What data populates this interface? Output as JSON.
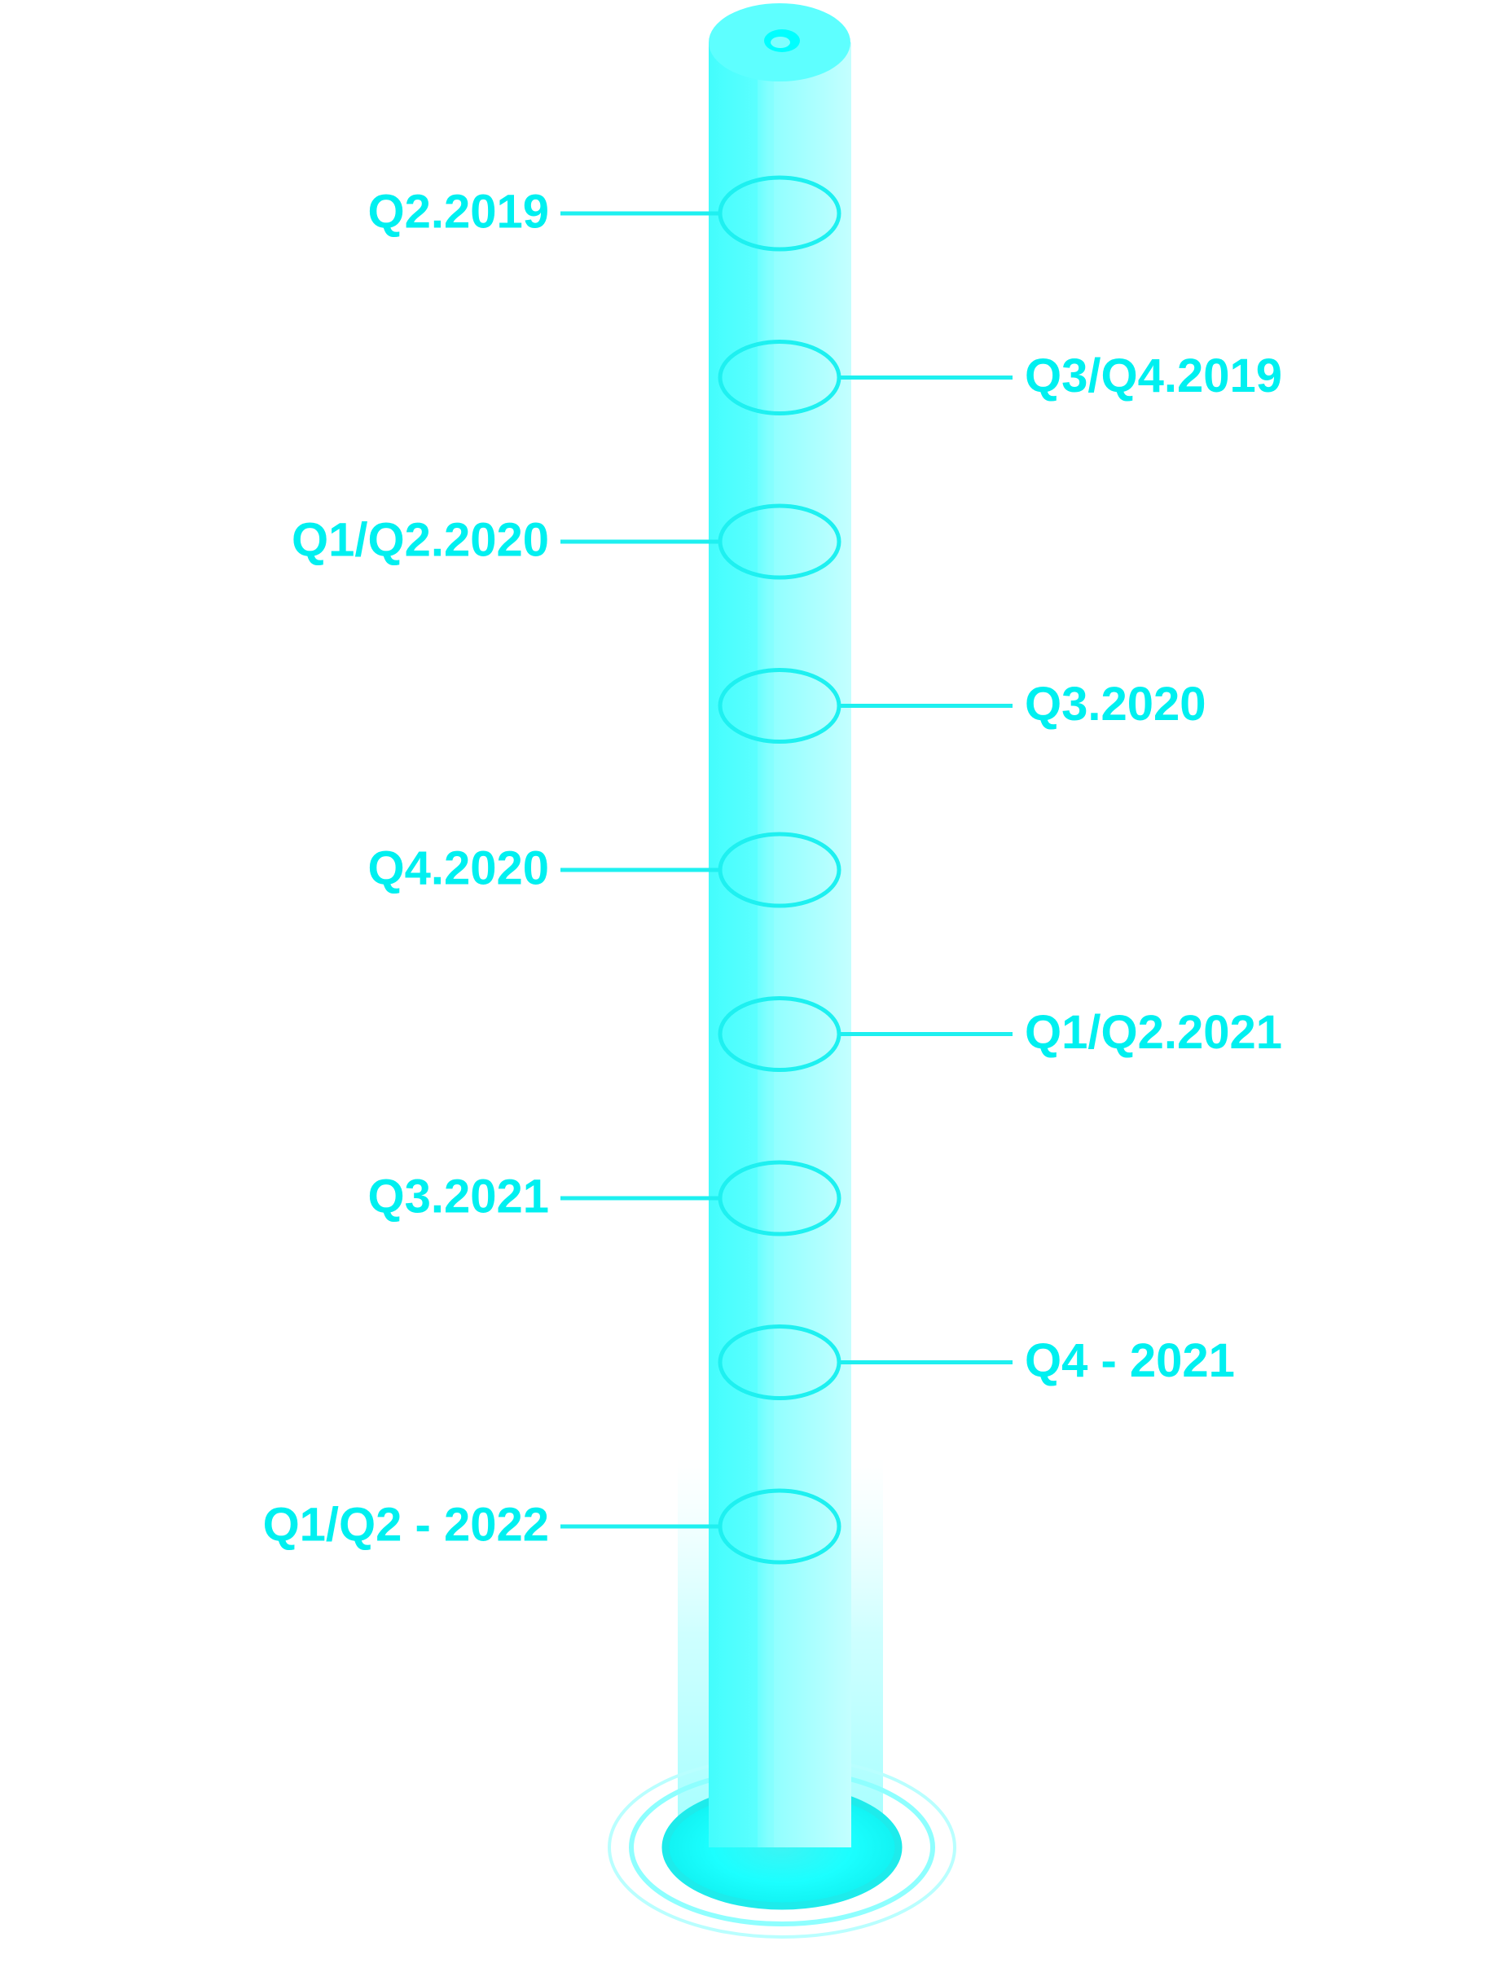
{
  "colors": {
    "accent": "#00FFFF",
    "tube_light": "#B8FFFF",
    "tube_mid": "#7AFFFF",
    "tube_core": "#4DFFFF",
    "ring": "#1EF0F0",
    "label": "#00F0F0",
    "background": "#FFFFFF"
  },
  "milestones": [
    {
      "label": "Q2.2019",
      "side": "left"
    },
    {
      "label": "Q3/Q4.2019",
      "side": "right"
    },
    {
      "label": "Q1/Q2.2020",
      "side": "left"
    },
    {
      "label": "Q3.2020",
      "side": "right"
    },
    {
      "label": "Q4.2020",
      "side": "left"
    },
    {
      "label": "Q1/Q2.2021",
      "side": "right"
    },
    {
      "label": "Q3.2021",
      "side": "left"
    },
    {
      "label": "Q4 - 2021",
      "side": "right"
    },
    {
      "label": "Q1/Q2 - 2022",
      "side": "left"
    }
  ]
}
